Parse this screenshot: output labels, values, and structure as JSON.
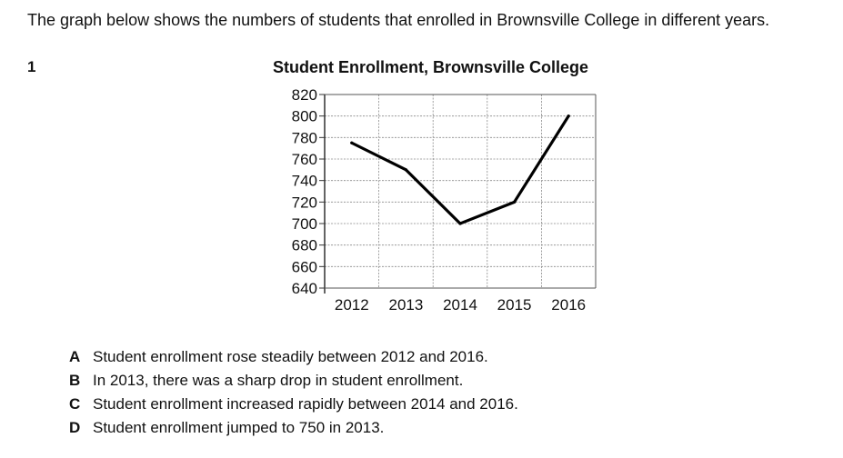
{
  "intro": "The graph below shows the numbers of students that enrolled in Brownsville College in different years.",
  "question_number": "1",
  "chart_data": {
    "type": "line",
    "title": "Student Enrollment, Brownsville College",
    "xlabel": "",
    "ylabel": "",
    "categories": [
      "2012",
      "2013",
      "2014",
      "2015",
      "2016"
    ],
    "series": [
      {
        "values": [
          775,
          750,
          700,
          720,
          800
        ]
      }
    ],
    "ylim": [
      640,
      820
    ],
    "yticks": [
      820,
      800,
      780,
      760,
      740,
      720,
      700,
      680,
      660,
      640
    ],
    "grid": true,
    "line_color": "#000000"
  },
  "options": [
    {
      "letter": "A",
      "text": "Student enrollment rose steadily between 2012 and 2016."
    },
    {
      "letter": "B",
      "text": "In 2013, there was a sharp drop in student enrollment."
    },
    {
      "letter": "C",
      "text": "Student enrollment increased rapidly between 2014 and 2016."
    },
    {
      "letter": "D",
      "text": "Student enrollment jumped to 750 in 2013."
    }
  ]
}
